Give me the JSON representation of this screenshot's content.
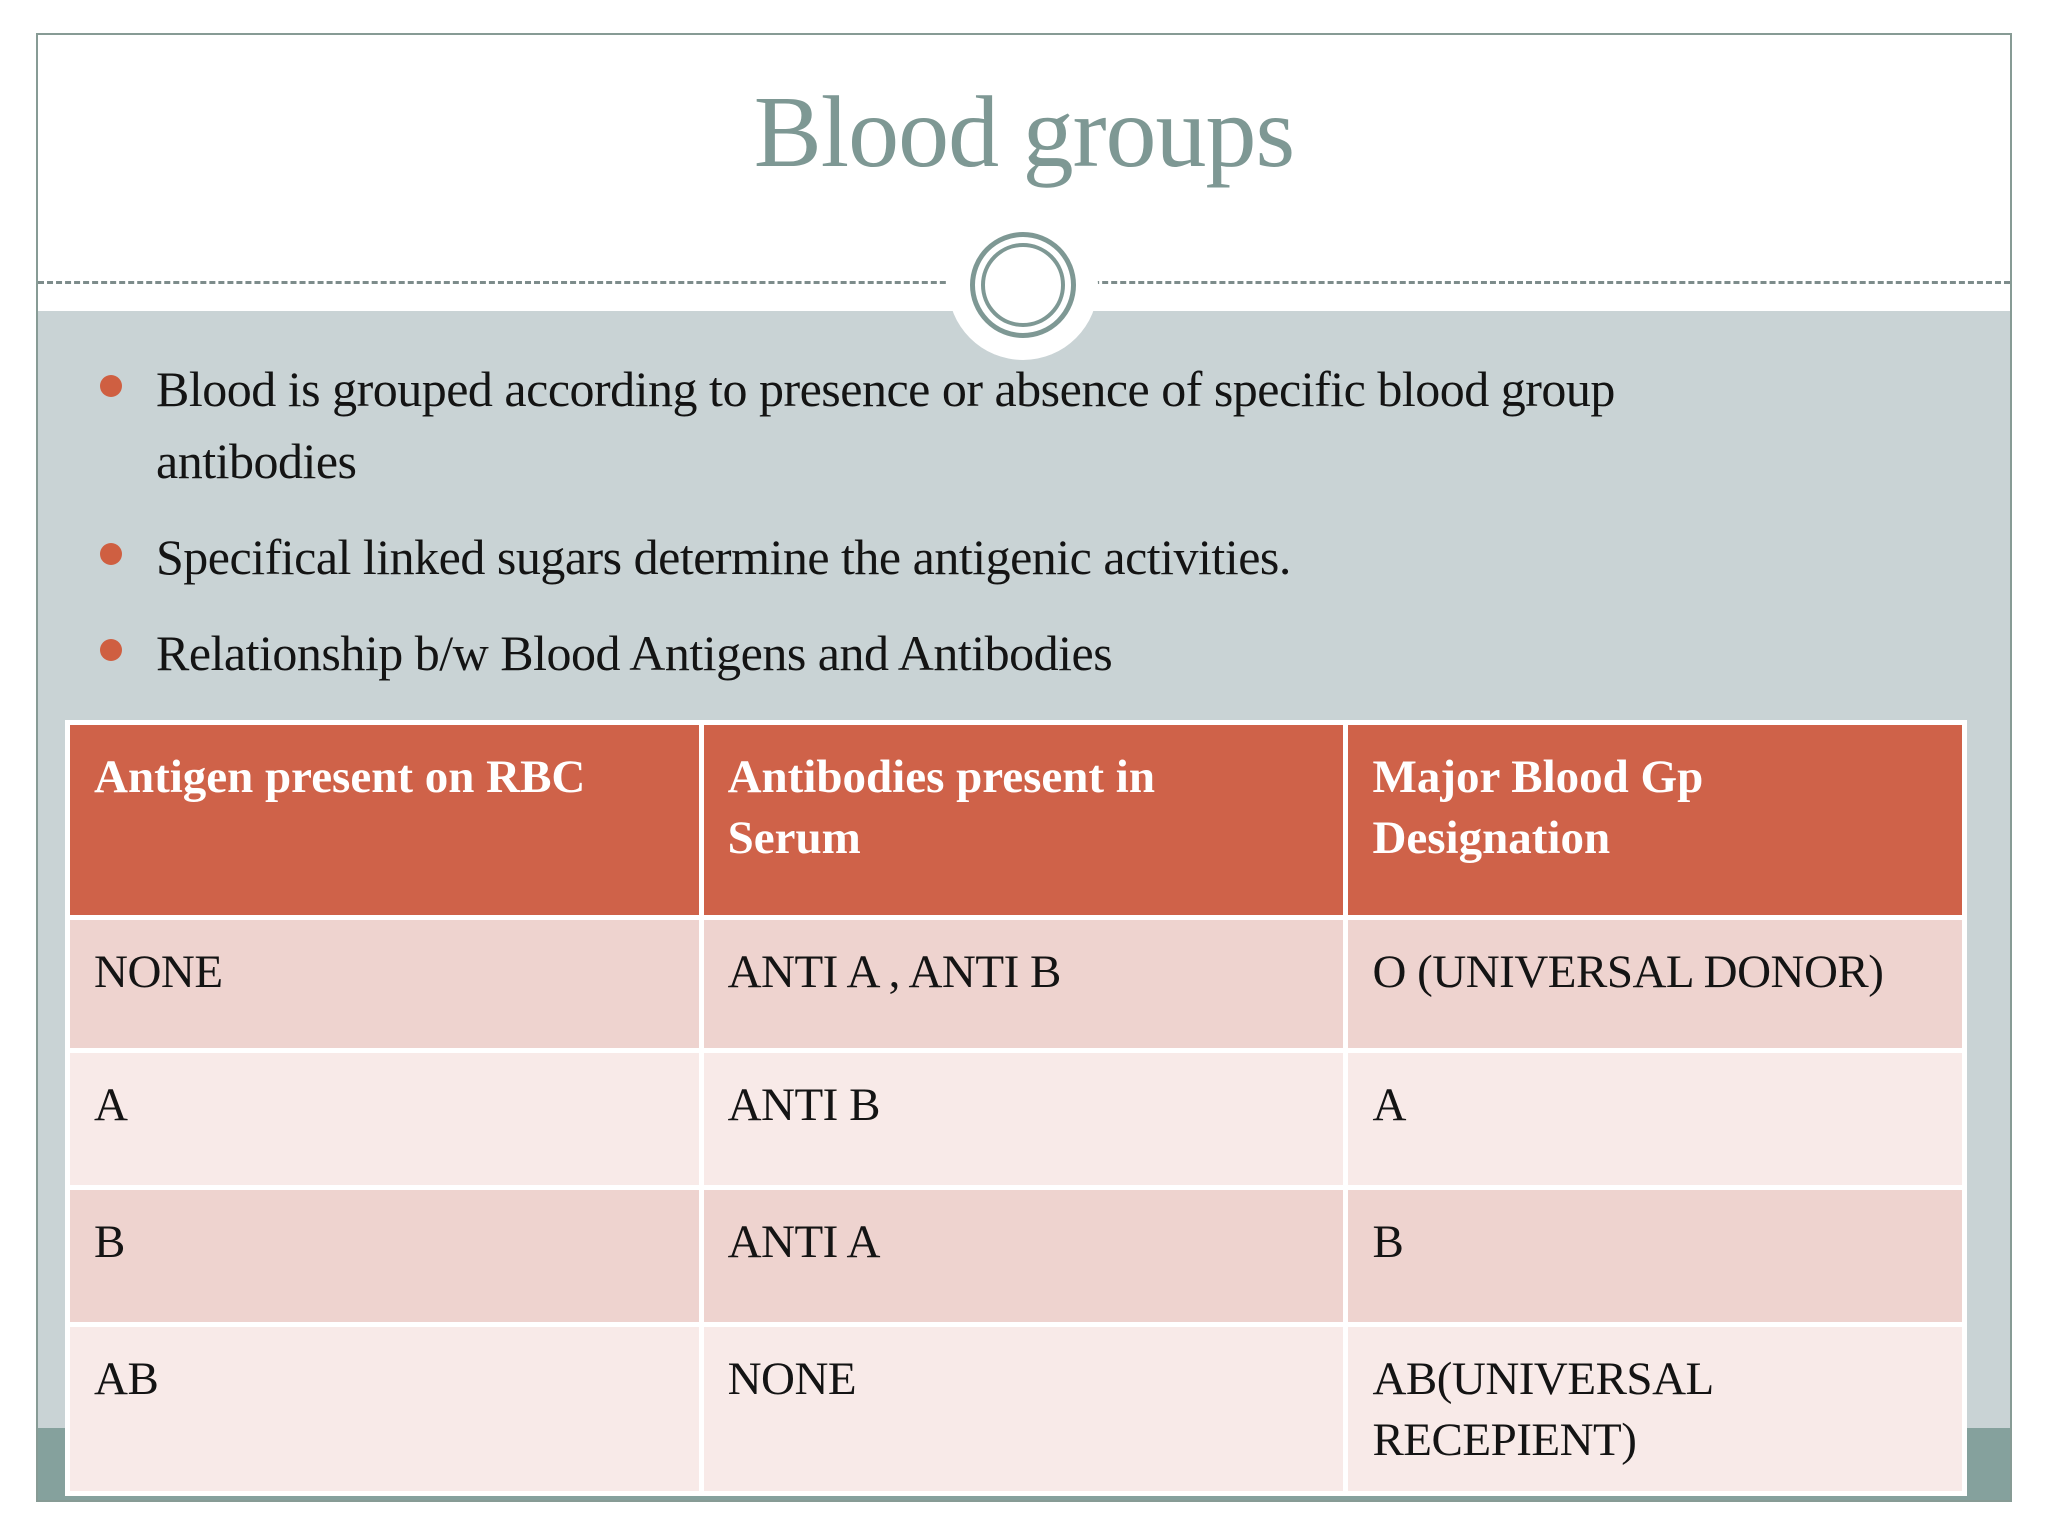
{
  "slide": {
    "title": "Blood groups",
    "bullets": [
      "Blood is grouped according to presence or absence of specific blood group antibodies",
      "Specifical linked sugars determine the antigenic activities.",
      "Relationship b/w Blood Antigens and Antibodies"
    ],
    "table": {
      "headers": [
        "Antigen present on RBC",
        "Antibodies present in Serum",
        "Major Blood Gp Designation"
      ],
      "rows": [
        [
          "NONE",
          "ANTI A , ANTI B",
          "O (UNIVERSAL DONOR)"
        ],
        [
          "A",
          "ANTI B",
          "A"
        ],
        [
          "B",
          "ANTI A",
          "B"
        ],
        [
          "AB",
          "NONE",
          "AB(UNIVERSAL RECEPIENT)"
        ]
      ]
    },
    "colors": {
      "frameBorder": "#879b95",
      "titleColor": "#7e9894",
      "contentBg": "#c9d3d5",
      "bandColor": "#85a19d",
      "dashColor": "#7d8c8b",
      "bulletDot": "#cf5f41",
      "headerBg": "#cf6249",
      "headerText": "#ffffff",
      "rowDark": "#eed3cf",
      "rowLight": "#f8eae8",
      "textDark": "#141414"
    }
  }
}
